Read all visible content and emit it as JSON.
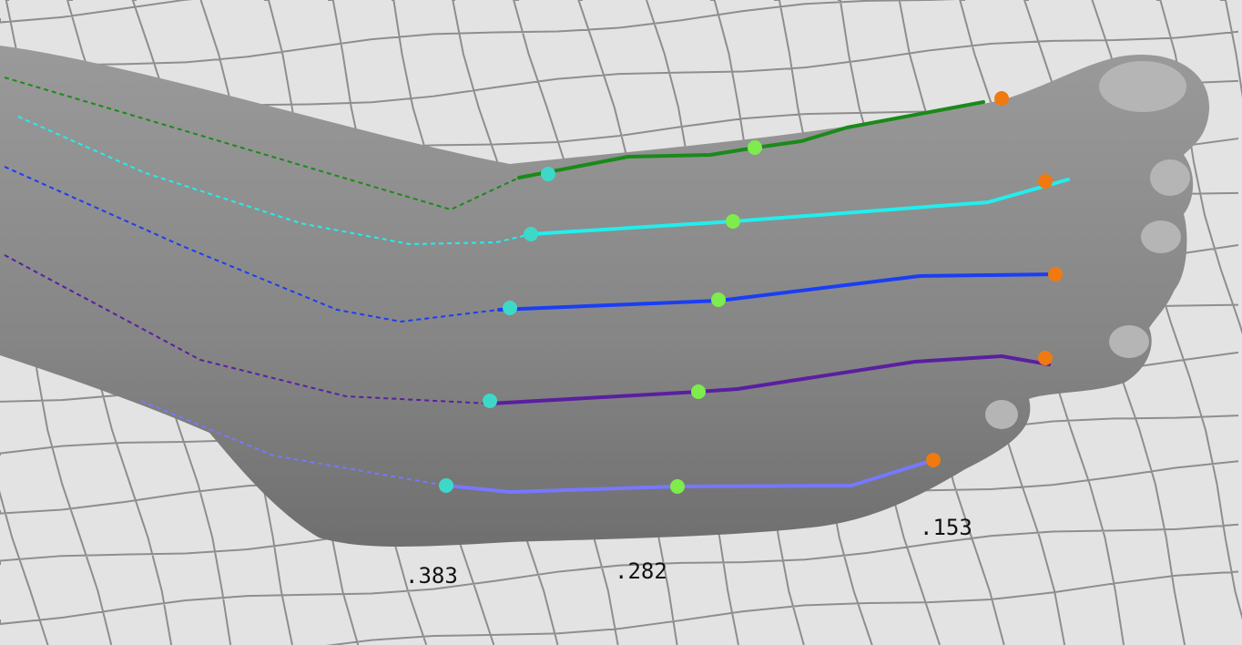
{
  "labels": [
    ".383",
    ".282",
    ".153"
  ]
}
